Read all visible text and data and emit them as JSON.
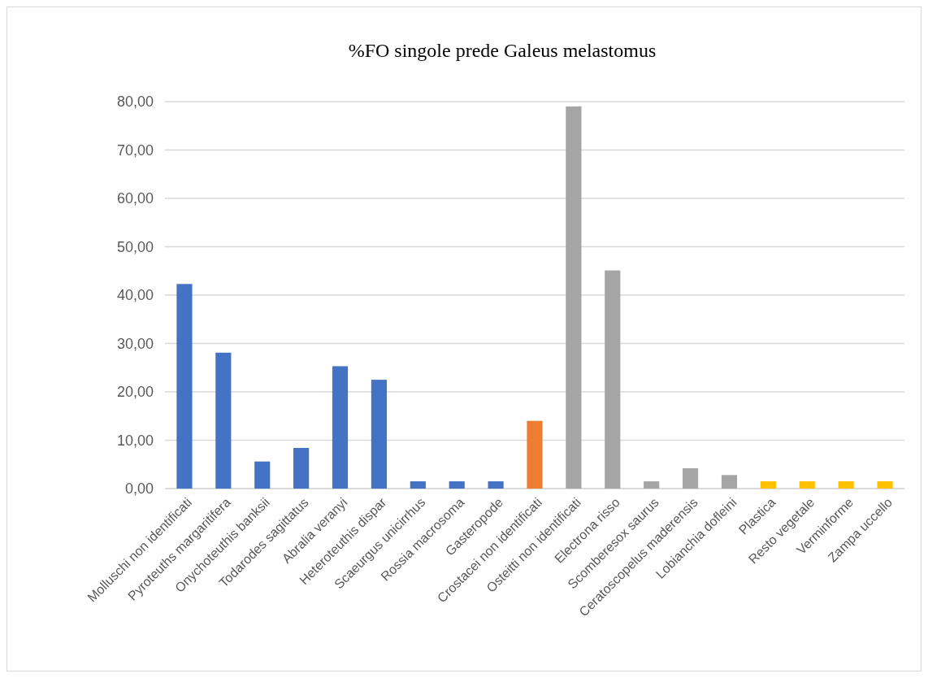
{
  "chart_data": {
    "type": "bar",
    "title": "%FO singole prede Galeus melastomus",
    "categories": [
      "Molluschi non identificati",
      "Pyroteuths margaritifera",
      "Onychoteuthis banksii",
      "Todarodes sagittatus",
      "Abralia veranyi",
      "Heteroteuthis dispar",
      "Scaeurgus unicirrhus",
      "Rossia macrosoma",
      "Gasteropode",
      "Crostacei non identificati",
      "Osteitti non identificati",
      "Electrona risso",
      "Scomberesox saurus",
      "Ceratoscopelus maderensis",
      "Lobianchia dofleini",
      "Plastica",
      "Resto vegetale",
      "Verminforme",
      "Zampa uccello"
    ],
    "values": [
      42.3,
      28.1,
      5.6,
      8.4,
      25.3,
      22.5,
      1.5,
      1.5,
      1.5,
      14.0,
      79.0,
      45.1,
      1.5,
      4.2,
      2.8,
      1.5,
      1.5,
      1.5,
      1.5
    ],
    "colors": [
      "#4472c4",
      "#4472c4",
      "#4472c4",
      "#4472c4",
      "#4472c4",
      "#4472c4",
      "#4472c4",
      "#4472c4",
      "#4472c4",
      "#ed7d31",
      "#a5a5a5",
      "#a5a5a5",
      "#a5a5a5",
      "#a5a5a5",
      "#a5a5a5",
      "#ffc000",
      "#ffc000",
      "#ffc000",
      "#ffc000"
    ],
    "ylim": [
      0,
      80
    ],
    "yticks": [
      {
        "value": 0,
        "label": "0,00"
      },
      {
        "value": 10,
        "label": "10,00"
      },
      {
        "value": 20,
        "label": "20,00"
      },
      {
        "value": 30,
        "label": "30,00"
      },
      {
        "value": 40,
        "label": "40,00"
      },
      {
        "value": 50,
        "label": "50,00"
      },
      {
        "value": 60,
        "label": "60,00"
      },
      {
        "value": 70,
        "label": "70,00"
      },
      {
        "value": 80,
        "label": "80,00"
      }
    ],
    "grid": true
  }
}
